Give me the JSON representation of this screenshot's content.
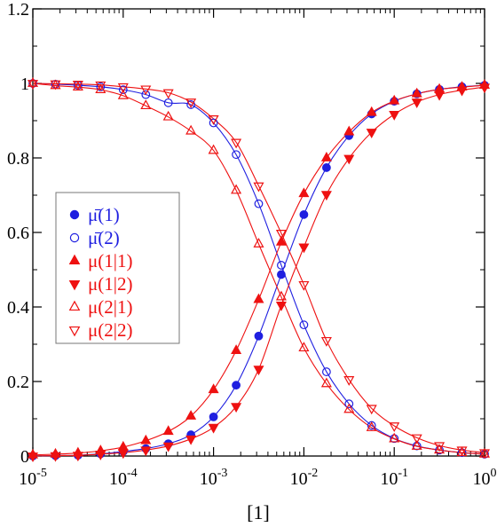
{
  "chart_data": {
    "type": "scatter",
    "title": "",
    "xlabel": "[1]",
    "ylabel": "",
    "xscale": "log",
    "xlim": [
      1e-05,
      1
    ],
    "ylim": [
      0,
      1.2
    ],
    "grid": false,
    "legend_position": "left-middle",
    "x_ticks": [
      {
        "value": 1e-05,
        "base": "10",
        "exp": "-5"
      },
      {
        "value": 0.0001,
        "base": "10",
        "exp": "-4"
      },
      {
        "value": 0.001,
        "base": "10",
        "exp": "-3"
      },
      {
        "value": 0.01,
        "base": "10",
        "exp": "-2"
      },
      {
        "value": 0.1,
        "base": "10",
        "exp": "-1"
      },
      {
        "value": 1,
        "base": "10",
        "exp": "0"
      }
    ],
    "y_ticks": [
      {
        "value": 0,
        "label": "0"
      },
      {
        "value": 0.2,
        "label": "0.2"
      },
      {
        "value": 0.4,
        "label": "0.4"
      },
      {
        "value": 0.6,
        "label": "0.6"
      },
      {
        "value": 0.8,
        "label": "0.8"
      },
      {
        "value": 1,
        "label": "1"
      },
      {
        "value": 1.2,
        "label": "1.2"
      }
    ],
    "x": [
      1e-05,
      1.78e-05,
      3.16e-05,
      5.62e-05,
      0.0001,
      0.000178,
      0.000316,
      0.000562,
      0.001,
      0.00178,
      0.00316,
      0.00562,
      0.01,
      0.0178,
      0.0316,
      0.0562,
      0.1,
      0.178,
      0.316,
      0.562,
      1
    ],
    "series": [
      {
        "name": "μ̄(1)",
        "color": "#1f1fe0",
        "marker": "circle",
        "fill": true,
        "values": [
          0.0,
          0.001,
          0.002,
          0.006,
          0.012,
          0.02,
          0.033,
          0.057,
          0.105,
          0.19,
          0.322,
          0.487,
          0.648,
          0.774,
          0.86,
          0.918,
          0.952,
          0.972,
          0.984,
          0.991,
          0.995
        ]
      },
      {
        "name": "μ̄(2)",
        "color": "#1f1fe0",
        "marker": "circle",
        "fill": false,
        "values": [
          1.0,
          0.998,
          0.995,
          0.991,
          0.983,
          0.97,
          0.948,
          0.943,
          0.894,
          0.809,
          0.677,
          0.512,
          0.352,
          0.226,
          0.14,
          0.082,
          0.047,
          0.027,
          0.016,
          0.009,
          0.005
        ]
      },
      {
        "name": "μ(1|1)",
        "color": "#ee1111",
        "marker": "triangle-up",
        "fill": true,
        "values": [
          0.003,
          0.005,
          0.008,
          0.014,
          0.024,
          0.041,
          0.066,
          0.107,
          0.178,
          0.283,
          0.42,
          0.574,
          0.704,
          0.8,
          0.87,
          0.922,
          0.953,
          0.972,
          0.984,
          0.99,
          0.995
        ]
      },
      {
        "name": "μ(1|2)",
        "color": "#ee1111",
        "marker": "triangle-down",
        "fill": true,
        "values": [
          0.0,
          0.001,
          0.002,
          0.005,
          0.009,
          0.016,
          0.027,
          0.046,
          0.077,
          0.133,
          0.233,
          0.405,
          0.561,
          0.702,
          0.799,
          0.869,
          0.917,
          0.95,
          0.97,
          0.982,
          0.99
        ]
      },
      {
        "name": "μ(2|1)",
        "color": "#ee1111",
        "marker": "triangle-up",
        "fill": false,
        "values": [
          1.0,
          0.994,
          0.99,
          0.983,
          0.967,
          0.94,
          0.91,
          0.872,
          0.82,
          0.713,
          0.569,
          0.427,
          0.29,
          0.194,
          0.125,
          0.076,
          0.046,
          0.026,
          0.016,
          0.009,
          0.005
        ]
      },
      {
        "name": "μ(2|2)",
        "color": "#ee1111",
        "marker": "triangle-down",
        "fill": false,
        "values": [
          1.0,
          0.999,
          0.998,
          0.996,
          0.991,
          0.985,
          0.975,
          0.95,
          0.905,
          0.842,
          0.725,
          0.598,
          0.46,
          0.31,
          0.205,
          0.128,
          0.081,
          0.049,
          0.028,
          0.016,
          0.009
        ]
      }
    ]
  }
}
